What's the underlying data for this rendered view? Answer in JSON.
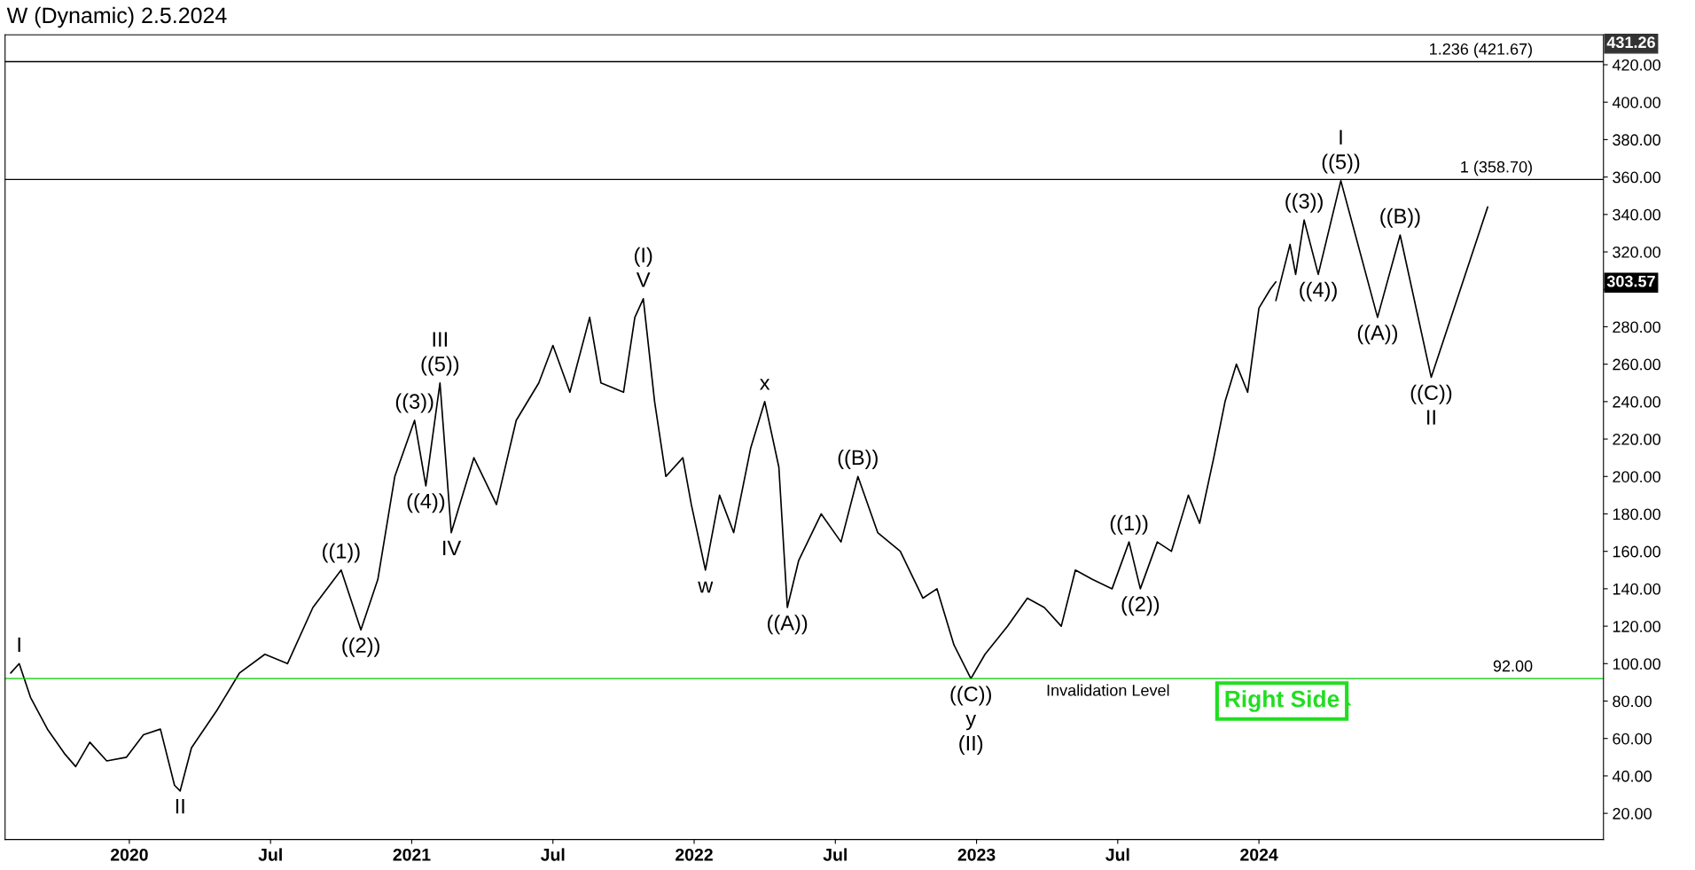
{
  "chart_data": {
    "type": "line",
    "title": "W (Dynamic) 2.5.2024",
    "series": [
      {
        "color": "#000000",
        "x": [
          2019.58,
          2019.61,
          2019.65,
          2019.71,
          2019.77,
          2019.81,
          2019.86,
          2019.92,
          2019.99,
          2020.05,
          2020.11,
          2020.16,
          2020.18,
          2020.22,
          2020.31,
          2020.39,
          2020.48,
          2020.56,
          2020.65,
          2020.75,
          2020.82,
          2020.88,
          2020.94,
          2021.01,
          2021.05,
          2021.1,
          2021.14,
          2021.22,
          2021.3,
          2021.37,
          2021.45,
          2021.5,
          2021.56,
          2021.63,
          2021.67,
          2021.75,
          2021.79,
          2021.82,
          2021.86,
          2021.9,
          2021.96,
          2021.99,
          2022.04,
          2022.09,
          2022.14,
          2022.2,
          2022.25,
          2022.3,
          2022.33,
          2022.37,
          2022.45,
          2022.52,
          2022.58,
          2022.65,
          2022.73,
          2022.81,
          2022.86,
          2022.92,
          2022.98,
          2023.03,
          2023.11,
          2023.18,
          2023.24,
          2023.3,
          2023.35,
          2023.41,
          2023.48,
          2023.54,
          2023.58,
          2023.64,
          2023.69,
          2023.75,
          2023.79,
          2023.84,
          2023.88,
          2023.92,
          2023.96,
          2024.0,
          2024.04,
          2024.06
        ],
        "values": [
          95,
          100,
          82,
          65,
          52,
          45,
          58,
          48,
          50,
          62,
          65,
          35,
          32,
          55,
          75,
          95,
          105,
          100,
          130,
          150,
          118,
          145,
          200,
          230,
          195,
          250,
          170,
          210,
          185,
          230,
          250,
          270,
          245,
          285,
          250,
          245,
          285,
          295,
          240,
          200,
          210,
          185,
          150,
          190,
          170,
          215,
          240,
          205,
          130,
          155,
          180,
          165,
          200,
          170,
          160,
          135,
          140,
          110,
          92,
          105,
          120,
          135,
          130,
          120,
          150,
          145,
          140,
          165,
          140,
          165,
          160,
          190,
          175,
          210,
          240,
          260,
          245,
          290,
          300,
          304
        ]
      },
      {
        "color": "#000000",
        "x": [
          2024.06,
          2024.11,
          2024.13,
          2024.16,
          2024.21,
          2024.29,
          2024.42,
          2024.5,
          2024.61,
          2024.81
        ],
        "values": [
          294,
          324,
          308,
          337,
          308,
          358,
          285,
          329,
          253,
          344
        ]
      }
    ],
    "xlim": [
      2019.56,
      2025.22
    ],
    "xticks": [
      {
        "value": 2020,
        "label": "2020"
      },
      {
        "value": 2020.5,
        "label": "Jul"
      },
      {
        "value": 2021,
        "label": "2021"
      },
      {
        "value": 2021.5,
        "label": "Jul"
      },
      {
        "value": 2022,
        "label": "2022"
      },
      {
        "value": 2022.5,
        "label": "Jul"
      },
      {
        "value": 2023,
        "label": "2023"
      },
      {
        "value": 2023.5,
        "label": "Jul"
      },
      {
        "value": 2024,
        "label": "2024"
      }
    ],
    "ylim": [
      6,
      436
    ],
    "yticks": [
      {
        "value": 20,
        "label": "20.00"
      },
      {
        "value": 40,
        "label": "40.00"
      },
      {
        "value": 60,
        "label": "60.00"
      },
      {
        "value": 80,
        "label": "80.00"
      },
      {
        "value": 100,
        "label": "100.00"
      },
      {
        "value": 120,
        "label": "120.00"
      },
      {
        "value": 140,
        "label": "140.00"
      },
      {
        "value": 160,
        "label": "160.00"
      },
      {
        "value": 180,
        "label": "180.00"
      },
      {
        "value": 200,
        "label": "200.00"
      },
      {
        "value": 220,
        "label": "220.00"
      },
      {
        "value": 240,
        "label": "240.00"
      },
      {
        "value": 260,
        "label": "260.00"
      },
      {
        "value": 280,
        "label": "280.00"
      },
      {
        "value": 300,
        "label": null
      },
      {
        "value": 320,
        "label": "320.00"
      },
      {
        "value": 340,
        "label": "340.00"
      },
      {
        "value": 360,
        "label": "360.00"
      },
      {
        "value": 380,
        "label": "380.00"
      },
      {
        "value": 400,
        "label": "400.00"
      },
      {
        "value": 420,
        "label": "420.00"
      }
    ],
    "ref_lines": [
      {
        "axis": "y",
        "value": 421.67,
        "label": "1.236 (421.67)",
        "color": "#000000"
      },
      {
        "axis": "y",
        "value": 358.7,
        "label": "1 (358.70)",
        "color": "#000000"
      },
      {
        "axis": "y",
        "value": 92,
        "label": "92.00",
        "color": "#00cc00"
      }
    ],
    "annotations": [
      "Invalidation Level",
      "Right Side",
      "303.57",
      "431.26",
      {
        "text": "I",
        "x": 2019.61,
        "y": 100
      },
      {
        "text": "II",
        "x": 2020.18,
        "y": 32
      },
      {
        "text": "((1))",
        "x": 2020.75,
        "y": 150
      },
      {
        "text": "((2))",
        "x": 2020.82,
        "y": 118
      },
      {
        "text": "((3))",
        "x": 2021.01,
        "y": 230
      },
      {
        "text": "((4))",
        "x": 2021.05,
        "y": 195
      },
      {
        "text": "((5))",
        "x": 2021.1,
        "y": 250
      },
      {
        "text": "III",
        "x": 2021.1,
        "y": 250
      },
      {
        "text": "IV",
        "x": 2021.14,
        "y": 170
      },
      {
        "text": "V",
        "x": 2021.82,
        "y": 295
      },
      {
        "text": "(I)",
        "x": 2021.82,
        "y": 295
      },
      {
        "text": "w",
        "x": 2022.04,
        "y": 150
      },
      {
        "text": "x",
        "x": 2022.25,
        "y": 240
      },
      {
        "text": "((A))",
        "x": 2022.33,
        "y": 130
      },
      {
        "text": "((B))",
        "x": 2022.58,
        "y": 200
      },
      {
        "text": "((C))",
        "x": 2022.98,
        "y": 92
      },
      {
        "text": "y",
        "x": 2022.98,
        "y": 92
      },
      {
        "text": "(II)",
        "x": 2022.98,
        "y": 92
      },
      {
        "text": "((1))",
        "x": 2023.54,
        "y": 165
      },
      {
        "text": "((2))",
        "x": 2023.58,
        "y": 140
      },
      {
        "text": "((3))",
        "x": 2024.16,
        "y": 337
      },
      {
        "text": "((4))",
        "x": 2024.21,
        "y": 308
      },
      {
        "text": "((5))",
        "x": 2024.29,
        "y": 358
      },
      {
        "text": "I",
        "x": 2024.29,
        "y": 358
      },
      {
        "text": "((A))",
        "x": 2024.42,
        "y": 285
      },
      {
        "text": "((B))",
        "x": 2024.5,
        "y": 329
      },
      {
        "text": "((C))",
        "x": 2024.61,
        "y": 253
      },
      {
        "text": "II",
        "x": 2024.61,
        "y": 253
      }
    ],
    "grid": false,
    "legend": false
  }
}
